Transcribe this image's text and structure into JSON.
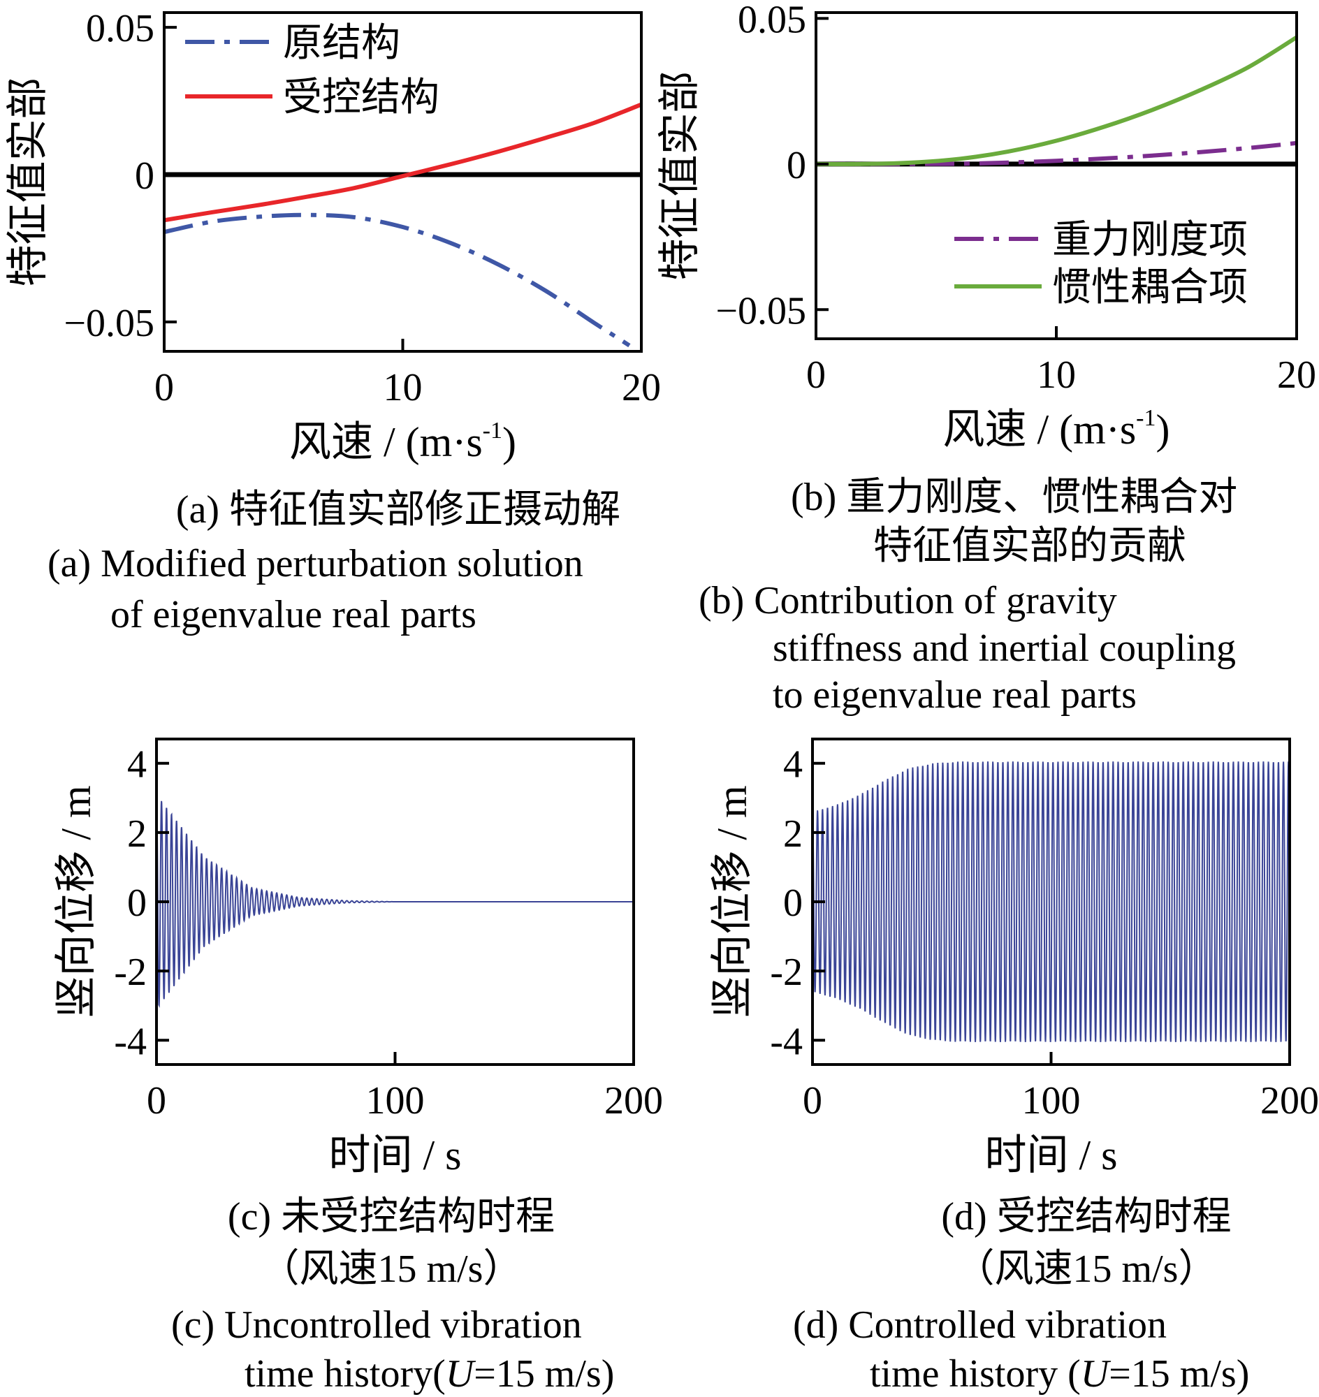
{
  "chart_data": [
    {
      "id": "a",
      "type": "line",
      "xlabel": "风速 / (m·s",
      "xlabel_sup": "-1",
      "xlabel_end": ")",
      "ylabel": "特征值实部",
      "xlim": [
        0,
        20
      ],
      "ylim": [
        -0.06,
        0.055
      ],
      "xticks": [
        0,
        10,
        20
      ],
      "xtick_labels": [
        "0",
        "10",
        "20"
      ],
      "yticks": [
        0.05,
        0,
        -0.05
      ],
      "ytick_labels": [
        "0.05",
        "0",
        "−0.05"
      ],
      "grid": false,
      "legend_position": "top-left",
      "zero_line": true,
      "series": [
        {
          "name": "原结构",
          "color": "#3f57a6",
          "style": "dashdot",
          "x": [
            0,
            2,
            4,
            6,
            8,
            10,
            12,
            14,
            16,
            18,
            19.5
          ],
          "y": [
            -0.0195,
            -0.016,
            -0.0143,
            -0.0137,
            -0.0145,
            -0.0178,
            -0.0232,
            -0.0305,
            -0.0395,
            -0.0502,
            -0.058
          ]
        },
        {
          "name": "受控结构",
          "color": "#e8262a",
          "style": "solid",
          "x": [
            0,
            2,
            4,
            6,
            8,
            10,
            12,
            14,
            16,
            18,
            20
          ],
          "y": [
            -0.0155,
            -0.0128,
            -0.0103,
            -0.0075,
            -0.0045,
            -0.0005,
            0.0035,
            0.0078,
            0.0125,
            0.0175,
            0.0238
          ]
        }
      ],
      "caption_cn": "(a)  特征值实部修正摄动解",
      "caption_en": [
        "(a) Modified perturbation solution",
        "of eigenvalue real parts"
      ]
    },
    {
      "id": "b",
      "type": "line",
      "xlabel": "风速 / (m·s",
      "xlabel_sup": "-1",
      "xlabel_end": ")",
      "ylabel": "特征值实部",
      "xlim": [
        0,
        20
      ],
      "ylim": [
        -0.06,
        0.052
      ],
      "xticks": [
        0,
        10,
        20
      ],
      "xtick_labels": [
        "0",
        "10",
        "20"
      ],
      "yticks": [
        0.05,
        0,
        -0.05
      ],
      "ytick_labels": [
        "0.05",
        "0",
        "−0.05"
      ],
      "grid": false,
      "legend_position": "bottom-right",
      "zero_line": true,
      "series": [
        {
          "name": "重力刚度项",
          "color": "#7b2d8e",
          "style": "dashdot",
          "x": [
            0,
            4,
            6,
            8,
            10,
            12,
            14,
            16,
            18,
            20
          ],
          "y": [
            0,
            0,
            0.0001,
            0.0005,
            0.0011,
            0.0019,
            0.0029,
            0.0041,
            0.0055,
            0.0072
          ]
        },
        {
          "name": "惯性耦合项",
          "color": "#6aab3c",
          "style": "solid",
          "x": [
            0,
            2,
            4,
            6,
            8,
            10,
            12,
            14,
            16,
            18,
            20
          ],
          "y": [
            0,
            0,
            0.0005,
            0.0018,
            0.0043,
            0.008,
            0.0128,
            0.0186,
            0.0254,
            0.0333,
            0.0435
          ]
        }
      ],
      "caption_cn": [
        "(b) 重力刚度、惯性耦合对",
        "特征值实部的贡献"
      ],
      "caption_en": [
        "(b)  Contribution of gravity",
        "stiffness and inertial coupling",
        "to eigenvalue real parts"
      ]
    },
    {
      "id": "c",
      "type": "line",
      "xlabel": "时间 / s",
      "ylabel": "竖向位移 / m",
      "xlim": [
        0,
        200
      ],
      "ylim": [
        -4.7,
        4.7
      ],
      "xticks": [
        0,
        100,
        200
      ],
      "xtick_labels": [
        "0",
        "100",
        "200"
      ],
      "yticks": [
        4,
        2,
        0,
        -2,
        -4
      ],
      "ytick_labels": [
        "4",
        "2",
        "0",
        "-2",
        "-4"
      ],
      "grid": false,
      "series": [
        {
          "name": "",
          "color": "#3a4496",
          "kind": "decaying-oscillation",
          "amplitude_envelope": {
            "t": [
              0,
              20,
              40,
              60,
              80,
              100,
              200
            ],
            "a": [
              3.1,
              1.3,
              0.4,
              0.12,
              0.03,
              0.0,
              0.0
            ]
          },
          "period_s": 2.1
        }
      ],
      "caption_cn": [
        "(c)  未受控结构时程",
        "（风速15 m/s）"
      ],
      "caption_en": [
        "(c)  Uncontrolled vibration",
        "time history(",
        "U",
        "=15 m/s)"
      ]
    },
    {
      "id": "d",
      "type": "line",
      "xlabel": "时间 / s",
      "ylabel": "竖向位移 / m",
      "xlim": [
        0,
        200
      ],
      "ylim": [
        -4.7,
        4.7
      ],
      "xticks": [
        0,
        100,
        200
      ],
      "xtick_labels": [
        "0",
        "100",
        "200"
      ],
      "yticks": [
        4,
        2,
        0,
        -2,
        -4
      ],
      "ytick_labels": [
        "4",
        "2",
        "0",
        "-2",
        "-4"
      ],
      "grid": false,
      "series": [
        {
          "name": "",
          "color": "#3a4496",
          "kind": "growing-oscillation",
          "amplitude_envelope": {
            "t": [
              0,
              10,
              20,
              30,
              40,
              50,
              60,
              200
            ],
            "a": [
              2.6,
              2.8,
              3.1,
              3.5,
              3.85,
              4.0,
              4.05,
              4.05
            ]
          },
          "period_s": 2.1
        }
      ],
      "caption_cn": [
        "(d)  受控结构时程",
        "（风速15 m/s）"
      ],
      "caption_en": [
        "(d)  Controlled vibration",
        "time history (",
        "U",
        "=15 m/s)"
      ]
    }
  ]
}
